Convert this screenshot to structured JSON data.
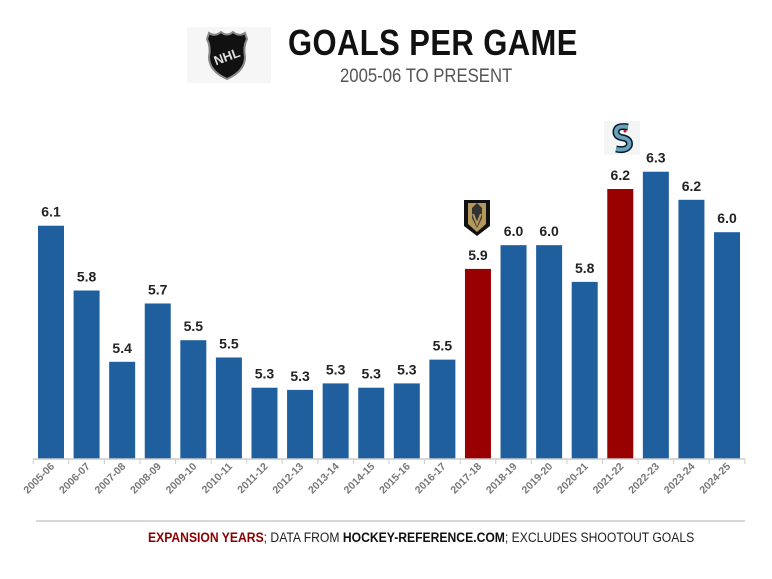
{
  "header": {
    "title": "GOALS PER GAME",
    "subtitle": "2005-06 TO PRESENT",
    "logo": "NHL"
  },
  "annotations": {
    "vegas_logo": "vegas-golden-knights-icon",
    "seattle_logo": "seattle-kraken-icon"
  },
  "footer": {
    "expansion": "EXPANSION YEARS",
    "sep1": "; DATA FROM ",
    "source": "HOCKEY-REFERENCE.COM",
    "sep2": "; EXCLUDES SHOOTOUT GOALS"
  },
  "colors": {
    "regular": "#1f5f9e",
    "expansion": "#990000"
  },
  "chart_data": {
    "type": "bar",
    "title": "GOALS PER GAME",
    "subtitle": "2005-06 TO PRESENT",
    "xlabel": "",
    "ylabel": "",
    "ylim": [
      5.0,
      6.5
    ],
    "grid": false,
    "categories": [
      "2005-06",
      "2006-07",
      "2007-08",
      "2008-09",
      "2009-10",
      "2010-11",
      "2011-12",
      "2012-13",
      "2013-14",
      "2014-15",
      "2015-16",
      "2016-17",
      "2017-18",
      "2018-19",
      "2019-20",
      "2020-21",
      "2021-22",
      "2022-23",
      "2023-24",
      "2024-25"
    ],
    "values": [
      6.08,
      5.78,
      5.45,
      5.72,
      5.55,
      5.47,
      5.33,
      5.32,
      5.35,
      5.33,
      5.35,
      5.46,
      5.88,
      5.99,
      5.99,
      5.82,
      6.25,
      6.33,
      6.2,
      6.05
    ],
    "labels": [
      "6.1",
      "5.8",
      "5.4",
      "5.7",
      "5.5",
      "5.5",
      "5.3",
      "5.3",
      "5.3",
      "5.3",
      "5.3",
      "5.5",
      "5.9",
      "6.0",
      "6.0",
      "5.8",
      "6.2",
      "6.3",
      "6.2",
      "6.0"
    ],
    "expansion": [
      "2017-18",
      "2021-22"
    ]
  }
}
